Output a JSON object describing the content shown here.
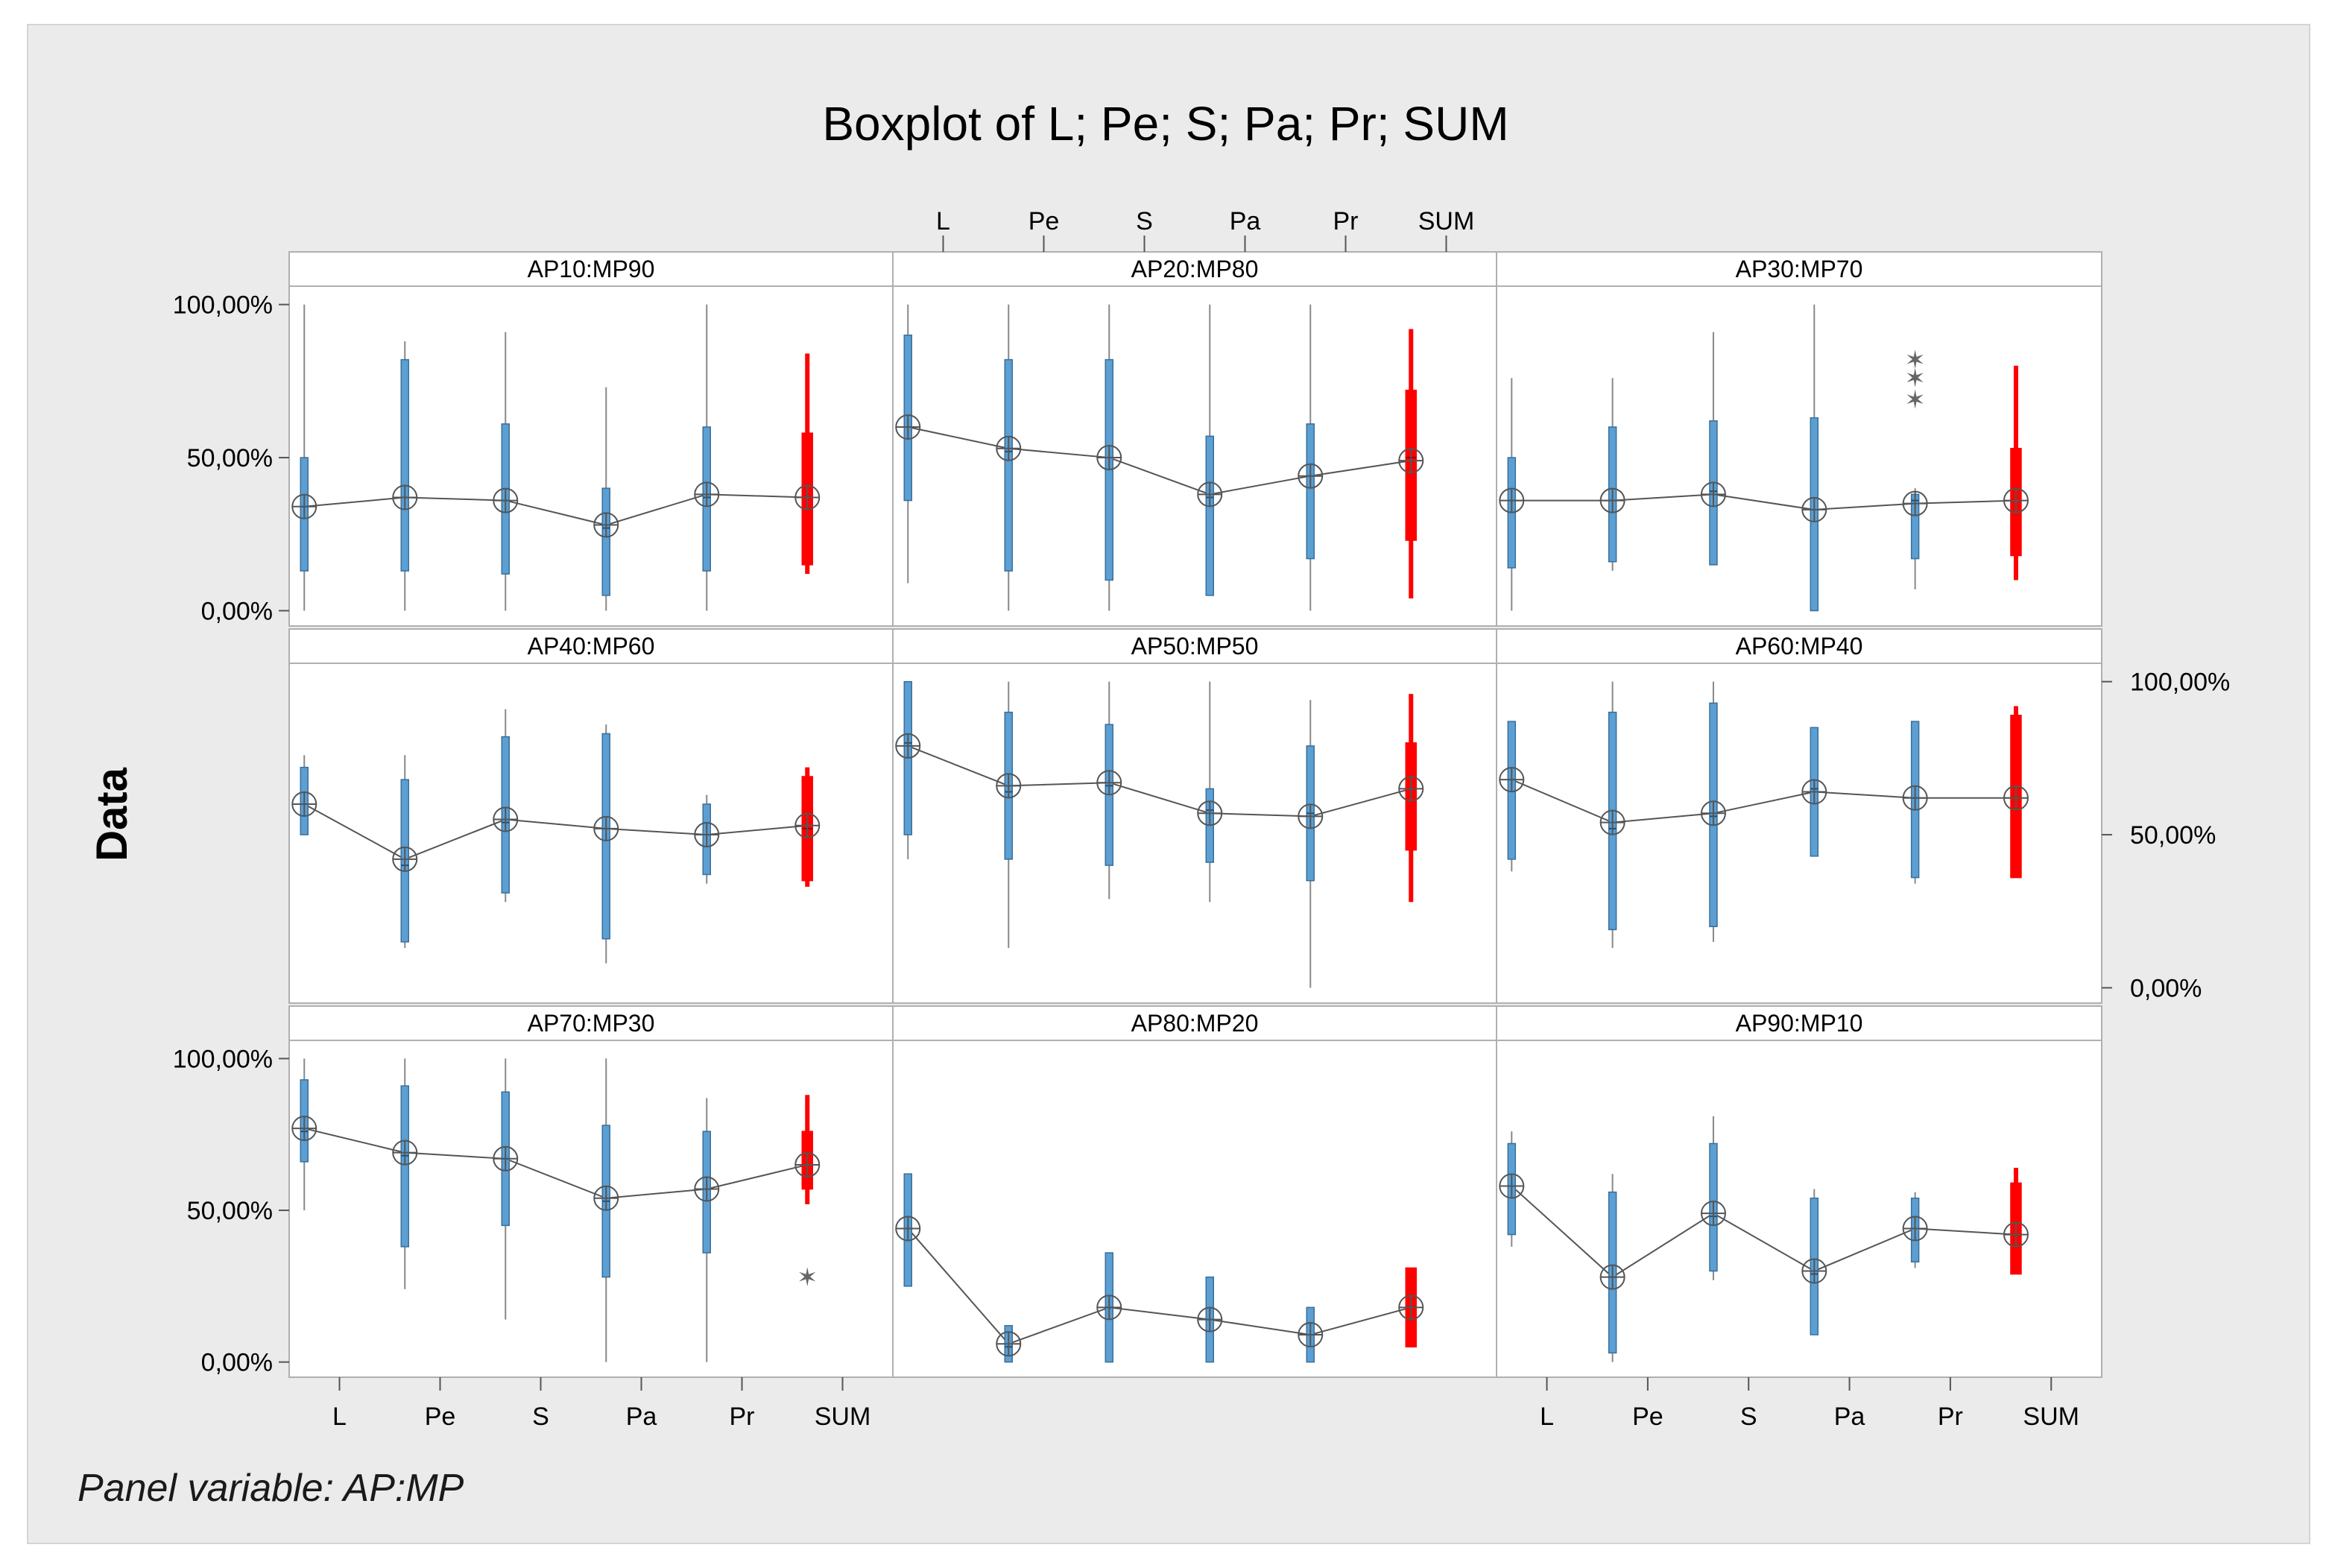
{
  "chart_data": {
    "type": "boxplot",
    "title": "Boxplot of L; Pe; S; Pa; Pr; SUM",
    "ylabel": "Data",
    "footnote": "Panel variable: AP:MP",
    "categories": [
      "L",
      "Pe",
      "S",
      "Pa",
      "Pr",
      "SUM"
    ],
    "y_ticks": [
      "0,00%",
      "50,00%",
      "100,00%"
    ],
    "y_tick_values": [
      0,
      50,
      100
    ],
    "ylim": [
      -5,
      106
    ],
    "colors": {
      "box": "#5b9fd3",
      "box_edge": "#3a6f9a",
      "sum": "#ff0000",
      "line": "#555555",
      "panel_bg": "#ffffff",
      "frame_bg": "#ebebeb"
    },
    "panels": [
      {
        "label": "AP10:MP90",
        "boxes": [
          {
            "cat": "L",
            "min": 0,
            "q1": 13,
            "median": 34,
            "q3": 50,
            "max": 100,
            "mean": 34
          },
          {
            "cat": "Pe",
            "min": 0,
            "q1": 13,
            "median": 37,
            "q3": 82,
            "max": 88,
            "mean": 37
          },
          {
            "cat": "S",
            "min": 0,
            "q1": 12,
            "median": 36,
            "q3": 61,
            "max": 91,
            "mean": 36
          },
          {
            "cat": "Pa",
            "min": 0,
            "q1": 5,
            "median": 27,
            "q3": 40,
            "max": 73,
            "mean": 28
          },
          {
            "cat": "Pr",
            "min": 0,
            "q1": 13,
            "median": 37,
            "q3": 60,
            "max": 100,
            "mean": 38
          },
          {
            "cat": "SUM",
            "min": 12,
            "q1": 15,
            "median": 37,
            "q3": 58,
            "max": 84,
            "mean": 37
          }
        ]
      },
      {
        "label": "AP20:MP80",
        "boxes": [
          {
            "cat": "L",
            "min": 9,
            "q1": 36,
            "median": 60,
            "q3": 90,
            "max": 100,
            "mean": 60
          },
          {
            "cat": "Pe",
            "min": 0,
            "q1": 13,
            "median": 52,
            "q3": 82,
            "max": 100,
            "mean": 53
          },
          {
            "cat": "S",
            "min": 0,
            "q1": 10,
            "median": 50,
            "q3": 82,
            "max": 100,
            "mean": 50
          },
          {
            "cat": "Pa",
            "min": 5,
            "q1": 5,
            "median": 37,
            "q3": 57,
            "max": 100,
            "mean": 38
          },
          {
            "cat": "Pr",
            "min": 0,
            "q1": 17,
            "median": 44,
            "q3": 61,
            "max": 100,
            "mean": 44
          },
          {
            "cat": "SUM",
            "min": 4,
            "q1": 23,
            "median": 50,
            "q3": 72,
            "max": 92,
            "mean": 49
          }
        ]
      },
      {
        "label": "AP30:MP70",
        "boxes": [
          {
            "cat": "L",
            "min": 0,
            "q1": 14,
            "median": 36,
            "q3": 50,
            "max": 76,
            "mean": 36
          },
          {
            "cat": "Pe",
            "min": 13,
            "q1": 16,
            "median": 36,
            "q3": 60,
            "max": 76,
            "mean": 36
          },
          {
            "cat": "S",
            "min": 15,
            "q1": 15,
            "median": 39,
            "q3": 62,
            "max": 91,
            "mean": 38
          },
          {
            "cat": "Pa",
            "min": 0,
            "q1": 0,
            "median": 33,
            "q3": 63,
            "max": 100,
            "mean": 33
          },
          {
            "cat": "Pr",
            "min": 7,
            "q1": 17,
            "median": 36,
            "q3": 38,
            "max": 40,
            "mean": 35,
            "outliers": [
              69,
              76,
              82
            ]
          },
          {
            "cat": "SUM",
            "min": 10,
            "q1": 18,
            "median": 36,
            "q3": 53,
            "max": 80,
            "mean": 36
          }
        ]
      },
      {
        "label": "AP40:MP60",
        "boxes": [
          {
            "cat": "L",
            "min": 50,
            "q1": 50,
            "median": 60,
            "q3": 72,
            "max": 76,
            "mean": 60
          },
          {
            "cat": "Pe",
            "min": 13,
            "q1": 15,
            "median": 40,
            "q3": 68,
            "max": 76,
            "mean": 42
          },
          {
            "cat": "S",
            "min": 28,
            "q1": 31,
            "median": 54,
            "q3": 82,
            "max": 91,
            "mean": 55
          },
          {
            "cat": "Pa",
            "min": 8,
            "q1": 16,
            "median": 52,
            "q3": 83,
            "max": 86,
            "mean": 52
          },
          {
            "cat": "Pr",
            "min": 34,
            "q1": 37,
            "median": 50,
            "q3": 60,
            "max": 63,
            "mean": 50
          },
          {
            "cat": "SUM",
            "min": 33,
            "q1": 35,
            "median": 52,
            "q3": 69,
            "max": 72,
            "mean": 53
          }
        ]
      },
      {
        "label": "AP50:MP50",
        "boxes": [
          {
            "cat": "L",
            "min": 42,
            "q1": 50,
            "median": 80,
            "q3": 100,
            "max": 100,
            "mean": 79
          },
          {
            "cat": "Pe",
            "min": 13,
            "q1": 42,
            "median": 64,
            "q3": 90,
            "max": 100,
            "mean": 66
          },
          {
            "cat": "S",
            "min": 29,
            "q1": 40,
            "median": 66,
            "q3": 86,
            "max": 100,
            "mean": 67
          },
          {
            "cat": "Pa",
            "min": 28,
            "q1": 41,
            "median": 58,
            "q3": 65,
            "max": 100,
            "mean": 57
          },
          {
            "cat": "Pr",
            "min": 0,
            "q1": 35,
            "median": 57,
            "q3": 79,
            "max": 94,
            "mean": 56
          },
          {
            "cat": "SUM",
            "min": 28,
            "q1": 45,
            "median": 65,
            "q3": 80,
            "max": 96,
            "mean": 65
          }
        ]
      },
      {
        "label": "AP60:MP40",
        "boxes": [
          {
            "cat": "L",
            "min": 38,
            "q1": 42,
            "median": 68,
            "q3": 87,
            "max": 87,
            "mean": 68
          },
          {
            "cat": "Pe",
            "min": 13,
            "q1": 19,
            "median": 52,
            "q3": 90,
            "max": 100,
            "mean": 54
          },
          {
            "cat": "S",
            "min": 15,
            "q1": 20,
            "median": 56,
            "q3": 93,
            "max": 100,
            "mean": 57
          },
          {
            "cat": "Pa",
            "min": 43,
            "q1": 43,
            "median": 65,
            "q3": 85,
            "max": 85,
            "mean": 64
          },
          {
            "cat": "Pr",
            "min": 34,
            "q1": 36,
            "median": 62,
            "q3": 87,
            "max": 87,
            "mean": 62
          },
          {
            "cat": "SUM",
            "min": 36,
            "q1": 36,
            "median": 62,
            "q3": 89,
            "max": 92,
            "mean": 62
          }
        ]
      },
      {
        "label": "AP70:MP30",
        "boxes": [
          {
            "cat": "L",
            "min": 50,
            "q1": 66,
            "median": 76,
            "q3": 93,
            "max": 100,
            "mean": 77
          },
          {
            "cat": "Pe",
            "min": 24,
            "q1": 38,
            "median": 68,
            "q3": 91,
            "max": 100,
            "mean": 69
          },
          {
            "cat": "S",
            "min": 14,
            "q1": 45,
            "median": 67,
            "q3": 89,
            "max": 100,
            "mean": 67
          },
          {
            "cat": "Pa",
            "min": 0,
            "q1": 28,
            "median": 53,
            "q3": 78,
            "max": 100,
            "mean": 54
          },
          {
            "cat": "Pr",
            "min": 0,
            "q1": 36,
            "median": 57,
            "q3": 76,
            "max": 87,
            "mean": 57
          },
          {
            "cat": "SUM",
            "min": 52,
            "q1": 57,
            "median": 65,
            "q3": 76,
            "max": 88,
            "mean": 65,
            "outliers": [
              28
            ]
          }
        ]
      },
      {
        "label": "AP80:MP20",
        "boxes": [
          {
            "cat": "L",
            "min": 25,
            "q1": 25,
            "median": 44,
            "q3": 62,
            "max": 62,
            "mean": 44
          },
          {
            "cat": "Pe",
            "min": 0,
            "q1": 0,
            "median": 5,
            "q3": 12,
            "max": 12,
            "mean": 6
          },
          {
            "cat": "S",
            "min": 0,
            "q1": 0,
            "median": 18,
            "q3": 36,
            "max": 36,
            "mean": 18
          },
          {
            "cat": "Pa",
            "min": 0,
            "q1": 0,
            "median": 14,
            "q3": 28,
            "max": 28,
            "mean": 14
          },
          {
            "cat": "Pr",
            "min": 0,
            "q1": 0,
            "median": 9,
            "q3": 18,
            "max": 18,
            "mean": 9
          },
          {
            "cat": "SUM",
            "min": 5,
            "q1": 5,
            "median": 18,
            "q3": 31,
            "max": 31,
            "mean": 18
          }
        ]
      },
      {
        "label": "AP90:MP10",
        "boxes": [
          {
            "cat": "L",
            "min": 38,
            "q1": 42,
            "median": 58,
            "q3": 72,
            "max": 76,
            "mean": 58
          },
          {
            "cat": "Pe",
            "min": 0,
            "q1": 3,
            "median": 28,
            "q3": 56,
            "max": 62,
            "mean": 28
          },
          {
            "cat": "S",
            "min": 27,
            "q1": 30,
            "median": 48,
            "q3": 72,
            "max": 81,
            "mean": 49
          },
          {
            "cat": "Pa",
            "min": 9,
            "q1": 9,
            "median": 29,
            "q3": 54,
            "max": 57,
            "mean": 30
          },
          {
            "cat": "Pr",
            "min": 31,
            "q1": 33,
            "median": 44,
            "q3": 54,
            "max": 56,
            "mean": 44
          },
          {
            "cat": "SUM",
            "min": 29,
            "q1": 29,
            "median": 42,
            "q3": 59,
            "max": 64,
            "mean": 42
          }
        ]
      }
    ]
  }
}
